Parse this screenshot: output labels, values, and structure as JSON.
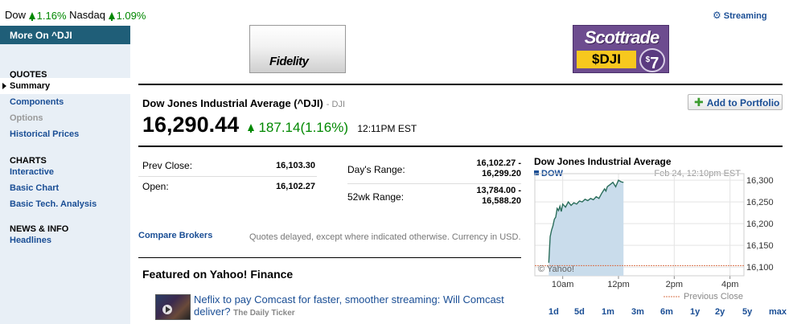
{
  "market": {
    "dow_label": "Dow",
    "dow_change": "1.16%",
    "nasdaq_label": "Nasdaq",
    "nasdaq_change": "1.09%"
  },
  "streaming_label": "Streaming",
  "sidebar": {
    "header": "More On ^DJI",
    "sections": [
      {
        "title": "QUOTES",
        "items": [
          {
            "label": "Summary",
            "state": "active"
          },
          {
            "label": "Components",
            "state": "link"
          },
          {
            "label": "Options",
            "state": "disabled"
          },
          {
            "label": "Historical Prices",
            "state": "link"
          }
        ]
      },
      {
        "title": "CHARTS",
        "items": [
          {
            "label": "Interactive",
            "state": "link"
          },
          {
            "label": "Basic Chart",
            "state": "link"
          },
          {
            "label": "Basic Tech. Analysis",
            "state": "link"
          }
        ]
      },
      {
        "title": "NEWS & INFO",
        "items": [
          {
            "label": "Headlines",
            "state": "link"
          }
        ]
      }
    ]
  },
  "ads": {
    "fidelity": "Fidelity",
    "scottrade_brand": "Scottrade",
    "scottrade_ticker": "$DJI",
    "scottrade_price_symbol": "$",
    "scottrade_price": "7"
  },
  "quote": {
    "name": "Dow Jones Industrial Average (^DJI)",
    "exchange": "- DJI",
    "last_price": "16,290.44",
    "change": "187.14",
    "change_pct": "(1.16%)",
    "time": "12:11PM EST",
    "add_portfolio": "Add to Portfolio"
  },
  "stats_left": [
    {
      "label": "Prev Close:",
      "value": "16,103.30"
    },
    {
      "label": "Open:",
      "value": "16,102.27"
    }
  ],
  "stats_right": [
    {
      "label": "Day's Range:",
      "value_line1": "16,102.27 -",
      "value_line2": "16,299.20"
    },
    {
      "label": "52wk Range:",
      "value_line1": "13,784.00 -",
      "value_line2": "16,588.20"
    }
  ],
  "compare_brokers": "Compare Brokers",
  "delay_note": "Quotes delayed, except where indicated otherwise. Currency in USD.",
  "featured": {
    "title": "Featured on Yahoo! Finance",
    "headline": "Neflix to pay Comcast for faster, smoother streaming: Will Comcast deliver?",
    "source": "The Daily Ticker"
  },
  "chart_data": {
    "type": "area",
    "title": "Dow Jones Industrial Average",
    "series_label": "DOW",
    "timestamp": "Feb 24, 12:10pm EST",
    "watermark": "© Yahoo!",
    "prev_close_label": "Previous Close",
    "prev_close": 16103.3,
    "ylim": [
      16080,
      16315
    ],
    "xlim": [
      9.0,
      16.5
    ],
    "y_ticks": [
      16100,
      16150,
      16200,
      16250,
      16300
    ],
    "y_tick_labels": [
      "16,100",
      "16,150",
      "16,200",
      "16,250",
      "16,300"
    ],
    "x_ticks": [
      10,
      12,
      14,
      16
    ],
    "x_tick_labels": [
      "10am",
      "12pm",
      "2pm",
      "4pm"
    ],
    "x": [
      9.5,
      9.55,
      9.6,
      9.65,
      9.7,
      9.75,
      9.8,
      9.85,
      9.9,
      9.95,
      10.0,
      10.1,
      10.2,
      10.3,
      10.4,
      10.5,
      10.6,
      10.7,
      10.8,
      10.9,
      11.0,
      11.1,
      11.2,
      11.3,
      11.4,
      11.5,
      11.55,
      11.6,
      11.7,
      11.8,
      11.9,
      12.0,
      12.1,
      12.18
    ],
    "values": [
      16110,
      16170,
      16185,
      16195,
      16210,
      16215,
      16235,
      16230,
      16240,
      16228,
      16245,
      16238,
      16250,
      16242,
      16248,
      16245,
      16252,
      16250,
      16256,
      16253,
      16258,
      16255,
      16262,
      16258,
      16270,
      16280,
      16275,
      16285,
      16290,
      16295,
      16285,
      16300,
      16296,
      16295
    ]
  },
  "ranges": [
    "1d",
    "5d",
    "1m",
    "3m",
    "6m",
    "1y",
    "2y",
    "5y",
    "max"
  ]
}
